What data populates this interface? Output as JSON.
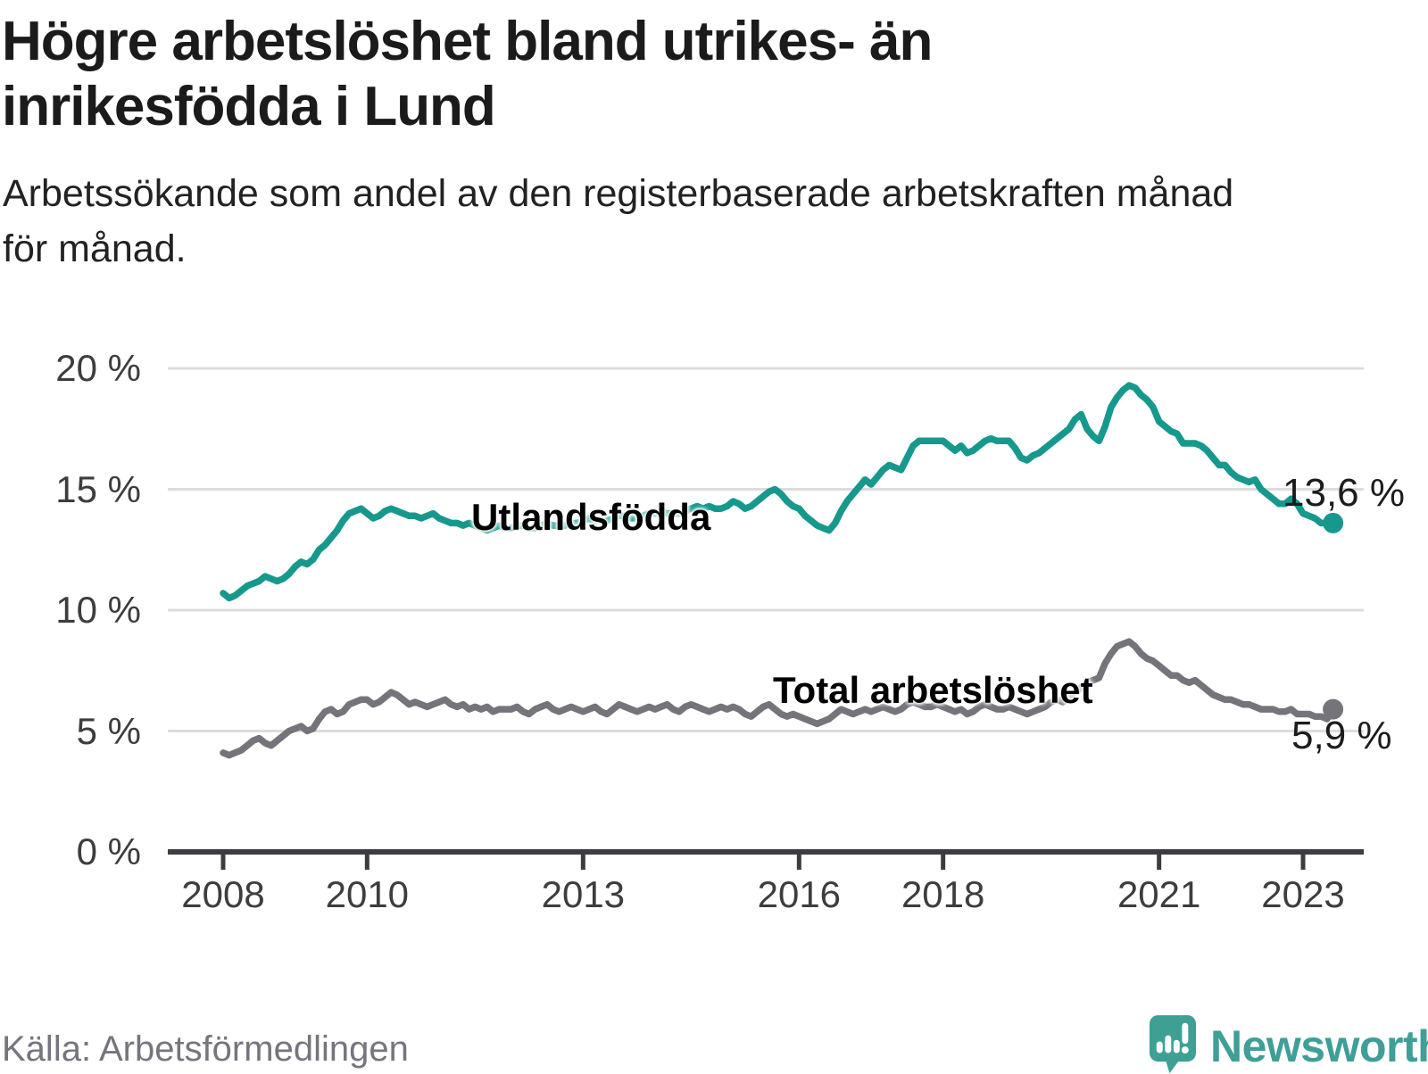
{
  "title": {
    "line1": "Högre arbetslöshet bland utrikes- än",
    "line2": "inrikesfödda i Lund"
  },
  "subtitle": {
    "line1": "Arbetssökande som andel av den registerbaserade arbetskraften månad",
    "line2": "för månad."
  },
  "source": "Källa: Arbetsförmedlingen",
  "brand": {
    "name": "Newsworthy",
    "icon": "speech-bubble-bar-chart-icon",
    "color": "#3ea094"
  },
  "chart_data": {
    "type": "line",
    "title": "Högre arbetslöshet bland utrikes- än inrikesfödda i Lund",
    "subtitle": "Arbetssökande som andel av den registerbaserade arbetskraften månad för månad.",
    "x_unit": "month",
    "x_start": "2008-01",
    "x_end": "2023-06",
    "ylim": [
      0,
      20.5
    ],
    "grid": "horizontal",
    "legend_position": "inline-labels",
    "x_ticks": [
      "2008",
      "2010",
      "2013",
      "2016",
      "2018",
      "2021",
      "2023"
    ],
    "y_ticks": [
      {
        "label": "0 %",
        "value": 0
      },
      {
        "label": "5 %",
        "value": 5
      },
      {
        "label": "10 %",
        "value": 10
      },
      {
        "label": "15 %",
        "value": 15
      },
      {
        "label": "20 %",
        "value": 20
      }
    ],
    "series": [
      {
        "name": "Utlandsfödda",
        "color": "#16998c",
        "end_label": "13,6 %",
        "end_value": 13.6,
        "values": [
          10.7,
          10.5,
          10.6,
          10.8,
          11.0,
          11.1,
          11.2,
          11.4,
          11.3,
          11.2,
          11.3,
          11.5,
          11.8,
          12.0,
          11.9,
          12.1,
          12.5,
          12.7,
          13.0,
          13.3,
          13.7,
          14.0,
          14.1,
          14.2,
          14.0,
          13.8,
          13.9,
          14.1,
          14.2,
          14.1,
          14.0,
          13.9,
          13.9,
          13.8,
          13.9,
          14.0,
          13.8,
          13.7,
          13.6,
          13.6,
          13.5,
          13.6,
          13.5,
          13.4,
          13.3,
          13.4,
          13.5,
          13.4,
          13.4,
          13.5,
          13.5,
          13.4,
          13.4,
          13.5,
          13.6,
          13.5,
          13.5,
          13.5,
          13.6,
          13.6,
          13.7,
          13.8,
          13.7,
          13.7,
          13.7,
          13.8,
          13.9,
          13.9,
          13.8,
          13.8,
          13.9,
          14.0,
          14.0,
          14.1,
          14.0,
          14.0,
          14.0,
          14.1,
          14.2,
          14.3,
          14.2,
          14.3,
          14.2,
          14.2,
          14.3,
          14.5,
          14.4,
          14.2,
          14.3,
          14.5,
          14.7,
          14.9,
          15.0,
          14.8,
          14.5,
          14.3,
          14.2,
          13.9,
          13.7,
          13.5,
          13.4,
          13.3,
          13.6,
          14.1,
          14.5,
          14.8,
          15.1,
          15.4,
          15.2,
          15.5,
          15.8,
          16.0,
          15.9,
          15.8,
          16.3,
          16.8,
          17.0,
          17.0,
          17.0,
          17.0,
          17.0,
          16.8,
          16.6,
          16.8,
          16.5,
          16.6,
          16.8,
          17.0,
          17.1,
          17.0,
          17.0,
          17.0,
          16.7,
          16.3,
          16.2,
          16.4,
          16.5,
          16.7,
          16.9,
          17.1,
          17.3,
          17.5,
          17.9,
          18.1,
          17.5,
          17.2,
          17.0,
          17.6,
          18.4,
          18.8,
          19.1,
          19.3,
          19.2,
          18.9,
          18.7,
          18.4,
          17.8,
          17.6,
          17.4,
          17.3,
          16.9,
          16.9,
          16.9,
          16.8,
          16.6,
          16.3,
          16.0,
          16.0,
          15.7,
          15.5,
          15.4,
          15.3,
          15.4,
          15.0,
          14.8,
          14.6,
          14.4,
          14.4,
          14.6,
          14.4,
          14.0,
          13.9,
          13.8,
          13.6,
          13.6,
          13.6
        ]
      },
      {
        "name": "Total arbetslöshet",
        "color": "#75747b",
        "end_label": "5,9 %",
        "end_value": 5.9,
        "values": [
          4.1,
          4.0,
          4.1,
          4.2,
          4.4,
          4.6,
          4.7,
          4.5,
          4.4,
          4.6,
          4.8,
          5.0,
          5.1,
          5.2,
          5.0,
          5.1,
          5.5,
          5.8,
          5.9,
          5.7,
          5.8,
          6.1,
          6.2,
          6.3,
          6.3,
          6.1,
          6.2,
          6.4,
          6.6,
          6.5,
          6.3,
          6.1,
          6.2,
          6.1,
          6.0,
          6.1,
          6.2,
          6.3,
          6.1,
          6.0,
          6.1,
          5.9,
          6.0,
          5.9,
          6.0,
          5.8,
          5.9,
          5.9,
          5.9,
          6.0,
          5.8,
          5.7,
          5.9,
          6.0,
          6.1,
          5.9,
          5.8,
          5.9,
          6.0,
          5.9,
          5.8,
          5.9,
          6.0,
          5.8,
          5.7,
          5.9,
          6.1,
          6.0,
          5.9,
          5.8,
          5.9,
          6.0,
          5.9,
          6.0,
          6.1,
          5.9,
          5.8,
          6.0,
          6.1,
          6.0,
          5.9,
          5.8,
          5.9,
          6.0,
          5.9,
          6.0,
          5.9,
          5.7,
          5.6,
          5.8,
          6.0,
          6.1,
          5.9,
          5.7,
          5.6,
          5.7,
          5.6,
          5.5,
          5.4,
          5.3,
          5.4,
          5.5,
          5.7,
          5.9,
          5.8,
          5.7,
          5.8,
          5.9,
          5.8,
          5.9,
          6.0,
          5.9,
          5.8,
          5.9,
          6.1,
          6.2,
          6.1,
          6.0,
          6.0,
          6.1,
          6.0,
          5.9,
          5.8,
          5.9,
          5.7,
          5.8,
          6.0,
          6.1,
          6.0,
          5.9,
          5.9,
          6.0,
          5.9,
          5.8,
          5.7,
          5.8,
          5.9,
          6.0,
          6.2,
          6.3,
          6.2,
          6.4,
          6.6,
          6.8,
          7.0,
          7.1,
          7.2,
          7.8,
          8.2,
          8.5,
          8.6,
          8.7,
          8.5,
          8.2,
          8.0,
          7.9,
          7.7,
          7.5,
          7.3,
          7.3,
          7.1,
          7.0,
          7.1,
          6.9,
          6.7,
          6.5,
          6.4,
          6.3,
          6.3,
          6.2,
          6.1,
          6.1,
          6.0,
          5.9,
          5.9,
          5.9,
          5.8,
          5.8,
          5.9,
          5.7,
          5.7,
          5.7,
          5.6,
          5.6,
          5.5,
          5.9
        ]
      }
    ]
  }
}
